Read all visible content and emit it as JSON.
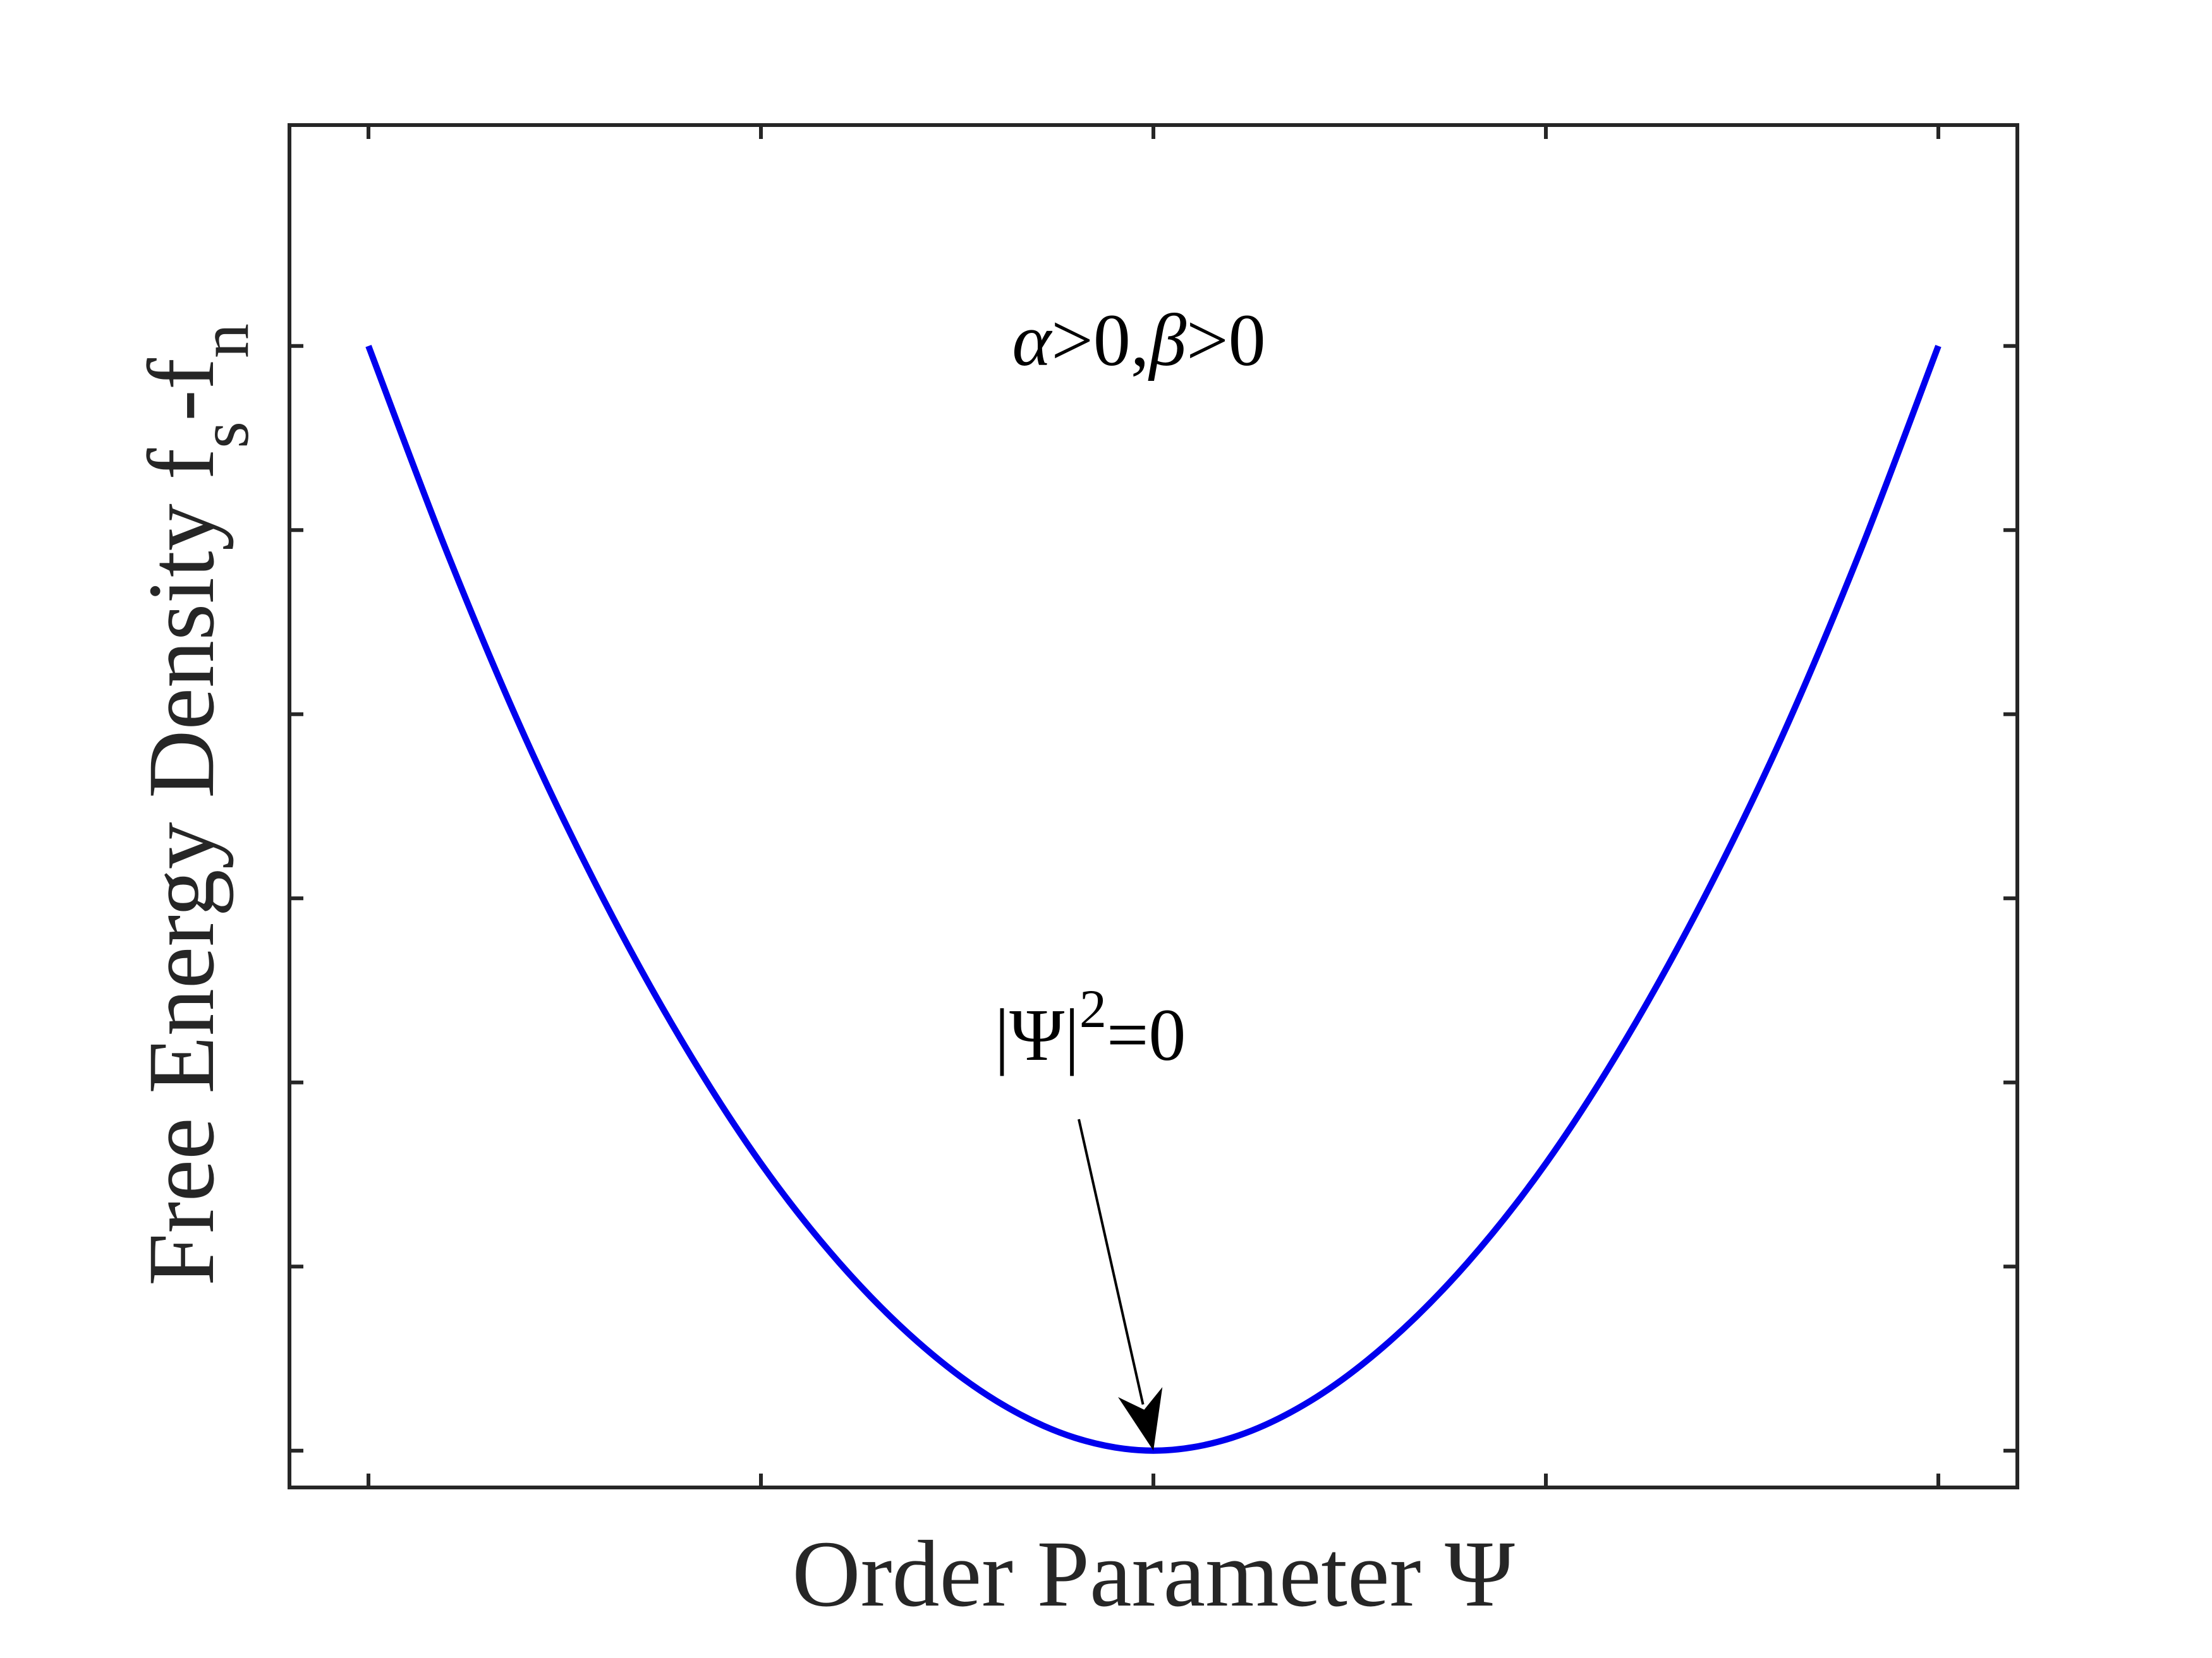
{
  "chart_data": {
    "type": "line",
    "xlabel": "Order Parameter Ψ",
    "ylabel": {
      "main": "Free Energy Density f",
      "sub1": "s",
      "mid": "-f",
      "sub2": "n"
    },
    "xlim": [
      -2,
      2
    ],
    "ylim": [
      -0.2,
      7.2
    ],
    "x_ticks": [
      -2,
      -1,
      0,
      1,
      2
    ],
    "y_ticks": [
      0,
      1,
      2,
      3,
      4,
      5,
      6
    ],
    "tick_labels_shown": false,
    "grid": false,
    "series": [
      {
        "color": "#0000ee",
        "x": [
          -2.0,
          -1.8,
          -1.6,
          -1.4,
          -1.2,
          -1.0,
          -0.8,
          -0.6,
          -0.4,
          -0.2,
          0.0,
          0.2,
          0.4,
          0.6,
          0.8,
          1.0,
          1.2,
          1.4,
          1.6,
          1.8,
          2.0
        ],
        "y": [
          6.0,
          4.88,
          3.87,
          2.99,
          2.22,
          1.56,
          1.02,
          0.59,
          0.27,
          0.07,
          0.0,
          0.07,
          0.27,
          0.59,
          1.02,
          1.56,
          2.22,
          2.99,
          3.87,
          4.88,
          6.0
        ]
      }
    ],
    "annotations": {
      "condition": {
        "alpha": "α",
        "rel1": ">0,",
        "beta": "β",
        "rel2": ">0",
        "at": [
          -0.08,
          5.3
        ]
      },
      "minimum": {
        "base": "|Ψ|",
        "sup": "2",
        "rest": "=0",
        "text_at": [
          -0.08,
          2.05
        ],
        "arrow_from": [
          -0.19,
          1.8
        ],
        "arrow_to": [
          0.0,
          0.0
        ]
      }
    }
  }
}
